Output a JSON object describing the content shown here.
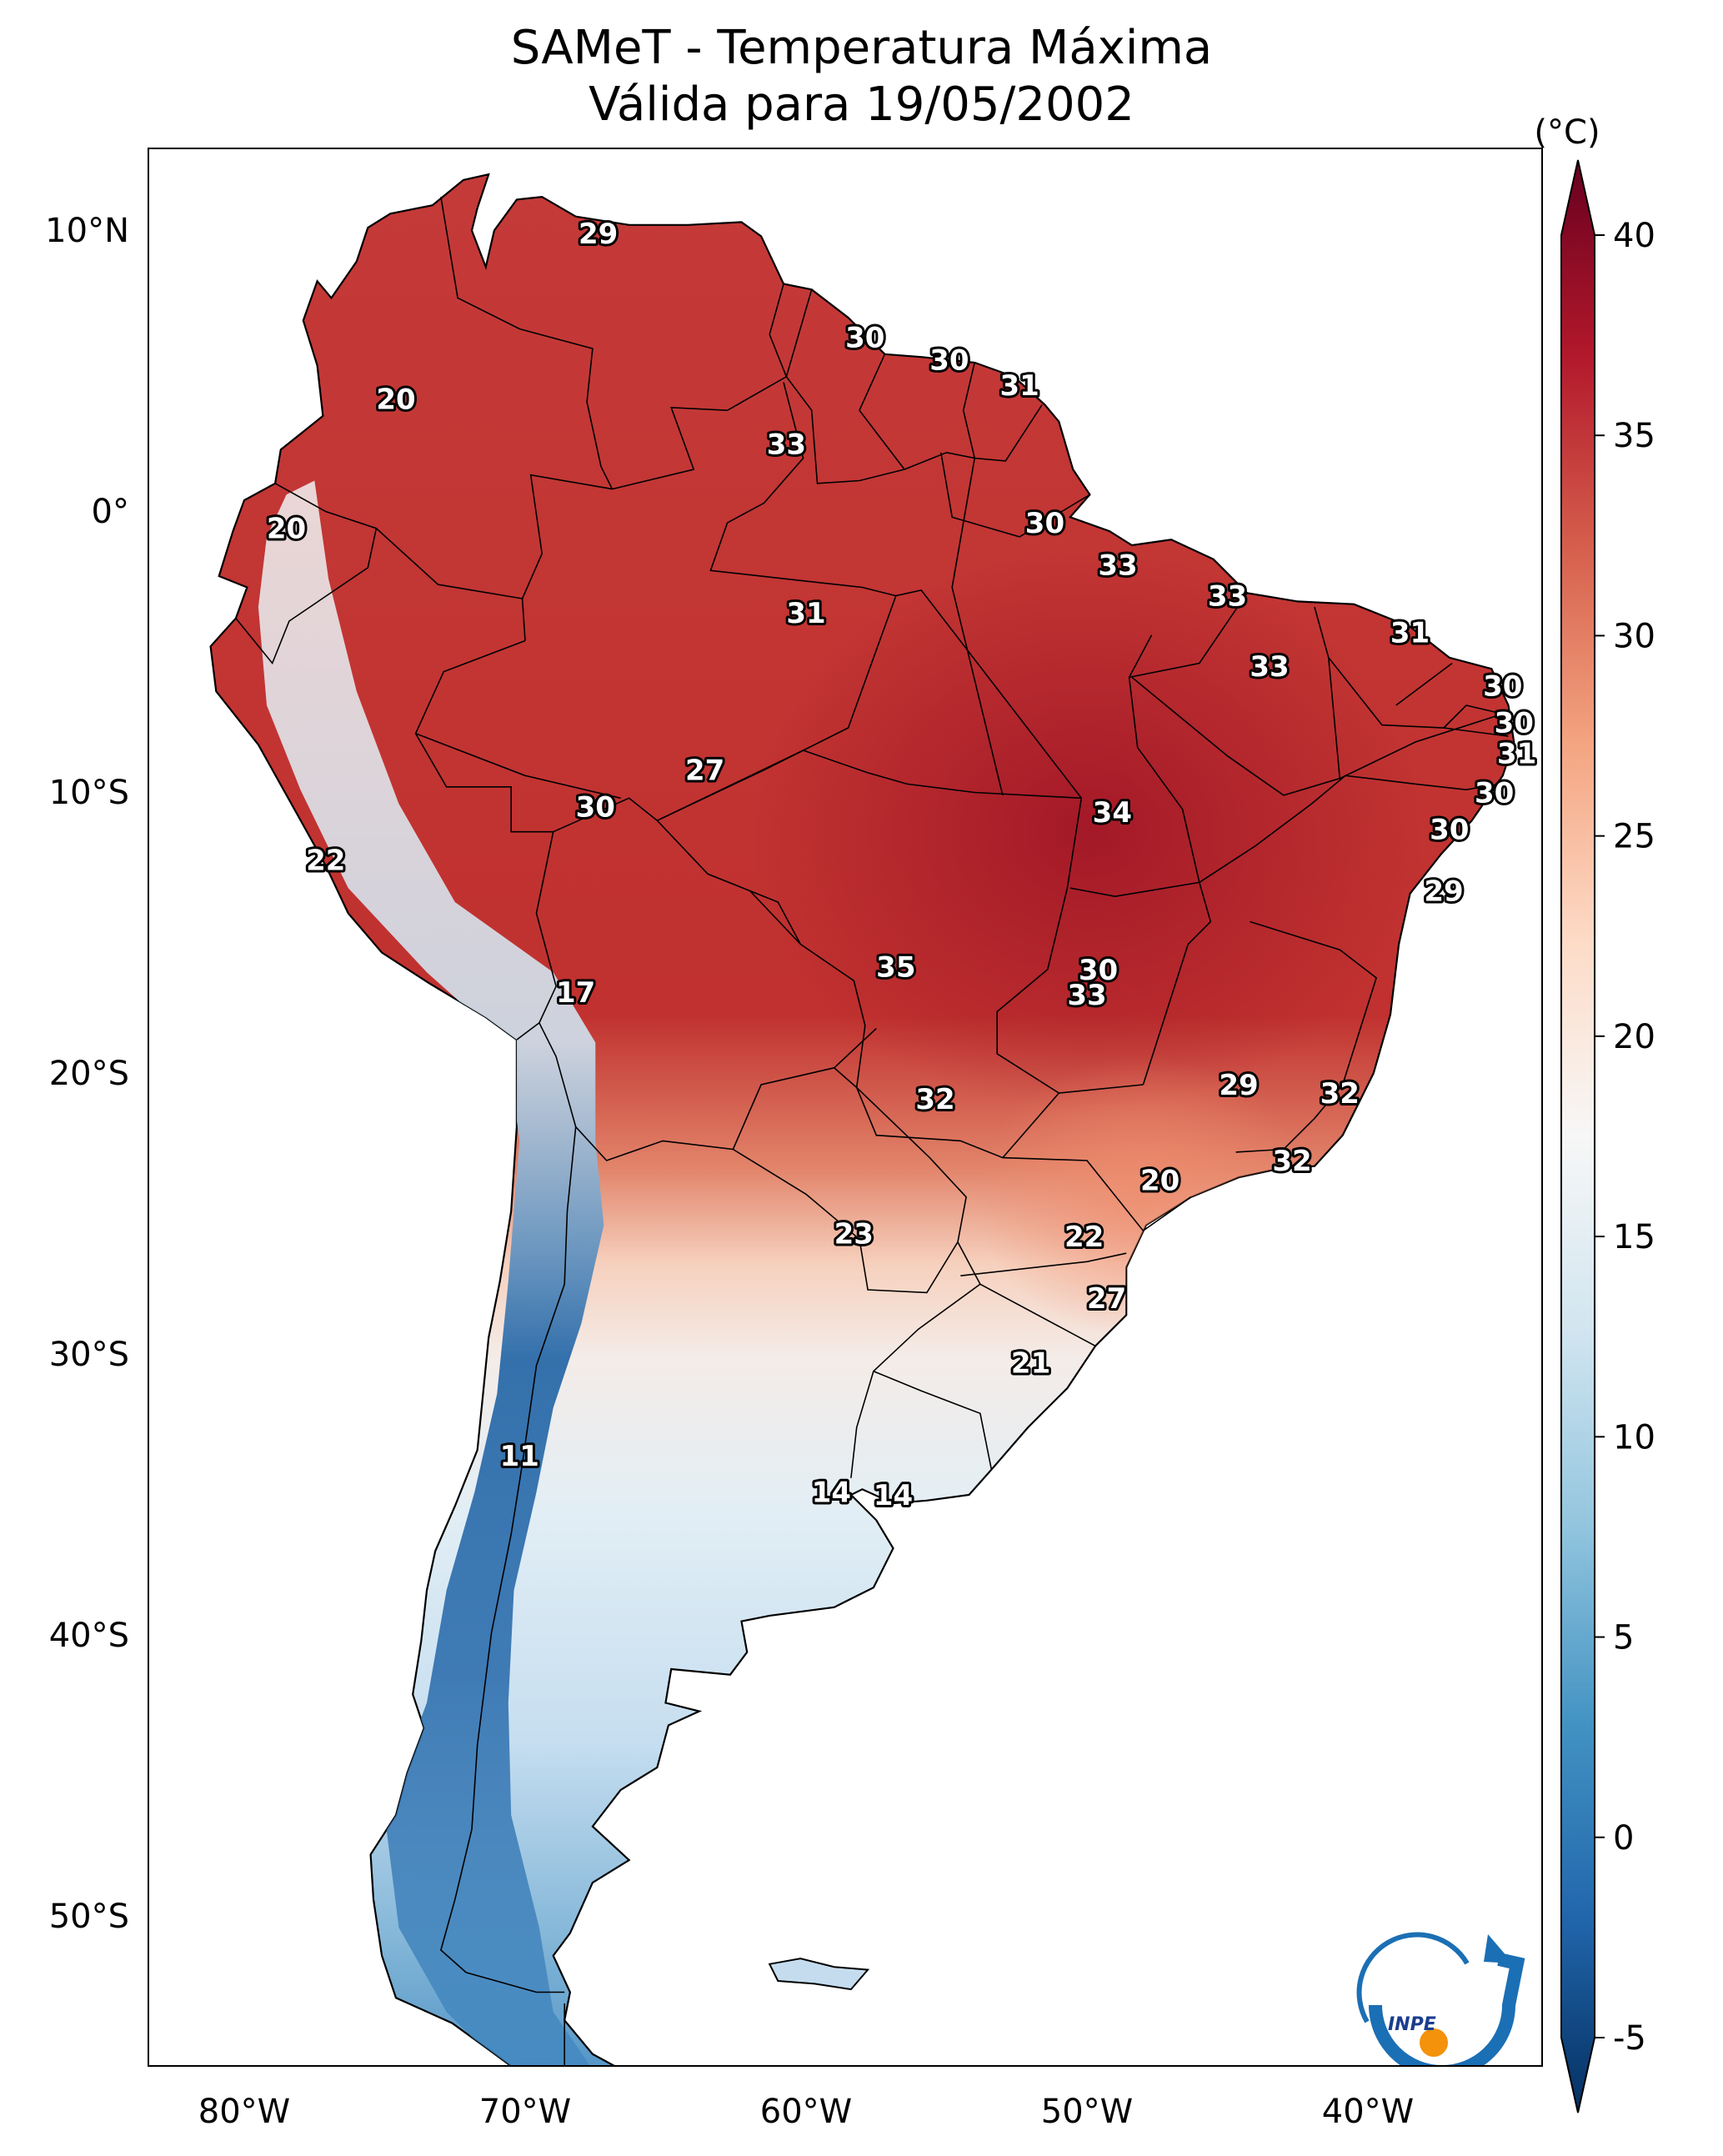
{
  "title": "SAMeT - Temperatura Máxima",
  "subtitle": "Válida para 19/05/2002",
  "colorbar": {
    "unit": "(°C)",
    "min": -5,
    "max": 40,
    "ticks": [
      "-5",
      "0",
      "5",
      "10",
      "15",
      "20",
      "25",
      "30",
      "35",
      "40"
    ],
    "colors": [
      "#053061",
      "#2166ac",
      "#4393c3",
      "#92c5de",
      "#d1e5f0",
      "#f7f7f7",
      "#fddbc7",
      "#f4a582",
      "#d6604d",
      "#b2182b",
      "#67001f"
    ]
  },
  "axes": {
    "lon_labels": [
      "80°W",
      "70°W",
      "60°W",
      "50°W",
      "40°W"
    ],
    "lat_labels": [
      "10°N",
      "0°",
      "10°S",
      "20°S",
      "30°S",
      "40°S",
      "50°S"
    ]
  },
  "map_labels": [
    {
      "text": "29",
      "lon": -67.4,
      "lat": 10.3
    },
    {
      "text": "20",
      "lon": -74.6,
      "lat": 4.4
    },
    {
      "text": "30",
      "lon": -57.9,
      "lat": 6.6
    },
    {
      "text": "30",
      "lon": -54.9,
      "lat": 5.8
    },
    {
      "text": "31",
      "lon": -52.4,
      "lat": 4.9
    },
    {
      "text": "33",
      "lon": -60.7,
      "lat": 2.8
    },
    {
      "text": "20",
      "lon": -78.5,
      "lat": -0.2
    },
    {
      "text": "30",
      "lon": -51.5,
      "lat": 0.0
    },
    {
      "text": "33",
      "lon": -48.9,
      "lat": -1.5
    },
    {
      "text": "33",
      "lon": -45.0,
      "lat": -2.6
    },
    {
      "text": "31",
      "lon": -60.0,
      "lat": -3.2
    },
    {
      "text": "31",
      "lon": -38.5,
      "lat": -3.9
    },
    {
      "text": "33",
      "lon": -43.5,
      "lat": -5.1
    },
    {
      "text": "30",
      "lon": -35.2,
      "lat": -5.8
    },
    {
      "text": "30",
      "lon": -34.8,
      "lat": -7.1
    },
    {
      "text": "31",
      "lon": -34.7,
      "lat": -8.2
    },
    {
      "text": "27",
      "lon": -63.6,
      "lat": -8.8
    },
    {
      "text": "30",
      "lon": -35.5,
      "lat": -9.6
    },
    {
      "text": "30",
      "lon": -67.5,
      "lat": -10.1
    },
    {
      "text": "34",
      "lon": -49.1,
      "lat": -10.3
    },
    {
      "text": "30",
      "lon": -37.1,
      "lat": -10.9
    },
    {
      "text": "22",
      "lon": -77.1,
      "lat": -12.0
    },
    {
      "text": "29",
      "lon": -37.3,
      "lat": -13.1
    },
    {
      "text": "35",
      "lon": -56.8,
      "lat": -15.8
    },
    {
      "text": "30",
      "lon": -49.6,
      "lat": -15.9
    },
    {
      "text": "17",
      "lon": -68.2,
      "lat": -16.7
    },
    {
      "text": "33",
      "lon": -50.0,
      "lat": -16.8
    },
    {
      "text": "29",
      "lon": -44.6,
      "lat": -20.0
    },
    {
      "text": "32",
      "lon": -55.4,
      "lat": -20.5
    },
    {
      "text": "32",
      "lon": -41.0,
      "lat": -20.3
    },
    {
      "text": "32",
      "lon": -42.7,
      "lat": -22.7
    },
    {
      "text": "20",
      "lon": -47.4,
      "lat": -23.4
    },
    {
      "text": "23",
      "lon": -58.3,
      "lat": -25.3
    },
    {
      "text": "22",
      "lon": -50.1,
      "lat": -25.4
    },
    {
      "text": "27",
      "lon": -49.3,
      "lat": -27.6
    },
    {
      "text": "21",
      "lon": -52.0,
      "lat": -29.9
    },
    {
      "text": "11",
      "lon": -70.2,
      "lat": -33.2
    },
    {
      "text": "14",
      "lon": -59.1,
      "lat": -34.5
    },
    {
      "text": "14",
      "lon": -56.9,
      "lat": -34.6
    }
  ],
  "logo": {
    "text": "INPE"
  }
}
